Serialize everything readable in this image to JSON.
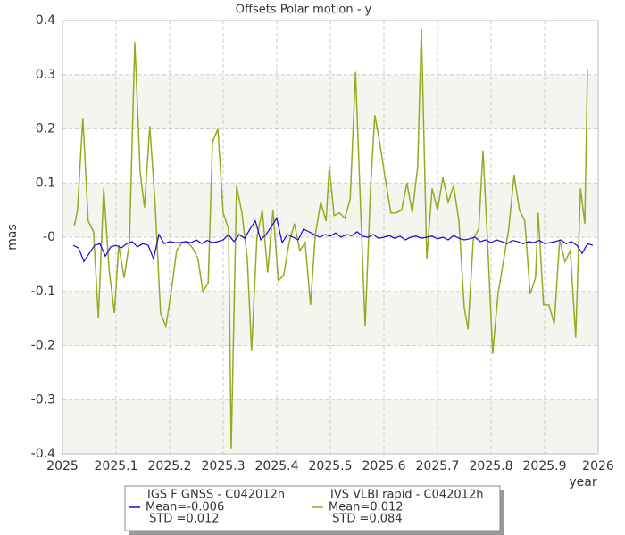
{
  "chart_data": {
    "type": "line",
    "title": "Offsets Polar motion - y",
    "xlabel": "year",
    "ylabel": "mas",
    "xlim": [
      2025,
      2026
    ],
    "xticks": [
      2025,
      2025.1,
      2025.2,
      2025.3,
      2025.4,
      2025.5,
      2025.6,
      2025.7,
      2025.8,
      2025.9,
      2026
    ],
    "ylim": [
      -0.4,
      0.4
    ],
    "yticks": [
      0.4,
      0.3,
      0.2,
      0.1,
      {
        "value": 0,
        "label": "-0"
      },
      -0.1,
      -0.2,
      -0.3,
      -0.4
    ],
    "grid": true,
    "series": [
      {
        "name": "IGS F GNSS - C042012h",
        "color": "#2200dd",
        "mean": "Mean=-0.006",
        "std": " STD =0.012",
        "x": [
          2025.02,
          2025.03,
          2025.04,
          2025.05,
          2025.06,
          2025.07,
          2025.08,
          2025.09,
          2025.1,
          2025.11,
          2025.12,
          2025.13,
          2025.14,
          2025.15,
          2025.16,
          2025.17,
          2025.18,
          2025.19,
          2025.2,
          2025.21,
          2025.22,
          2025.23,
          2025.24,
          2025.25,
          2025.26,
          2025.27,
          2025.28,
          2025.29,
          2025.3,
          2025.31,
          2025.32,
          2025.33,
          2025.34,
          2025.35,
          2025.36,
          2025.37,
          2025.38,
          2025.39,
          2025.4,
          2025.41,
          2025.42,
          2025.43,
          2025.44,
          2025.45,
          2025.46,
          2025.47,
          2025.48,
          2025.49,
          2025.5,
          2025.51,
          2025.52,
          2025.53,
          2025.54,
          2025.55,
          2025.56,
          2025.57,
          2025.58,
          2025.59,
          2025.6,
          2025.61,
          2025.62,
          2025.63,
          2025.64,
          2025.65,
          2025.66,
          2025.67,
          2025.68,
          2025.69,
          2025.7,
          2025.71,
          2025.72,
          2025.73,
          2025.74,
          2025.75,
          2025.76,
          2025.77,
          2025.78,
          2025.79,
          2025.8,
          2025.81,
          2025.82,
          2025.83,
          2025.84,
          2025.85,
          2025.86,
          2025.87,
          2025.88,
          2025.89,
          2025.9,
          2025.91,
          2025.92,
          2025.93,
          2025.94,
          2025.95,
          2025.96,
          2025.97,
          2025.98,
          2025.99
        ],
        "values": [
          -0.015,
          -0.02,
          -0.045,
          -0.03,
          -0.015,
          -0.012,
          -0.035,
          -0.018,
          -0.015,
          -0.02,
          -0.012,
          -0.008,
          -0.018,
          -0.012,
          -0.015,
          -0.04,
          0.005,
          -0.012,
          -0.008,
          -0.01,
          -0.01,
          -0.008,
          -0.01,
          -0.005,
          -0.012,
          -0.006,
          -0.01,
          -0.008,
          -0.005,
          0.005,
          -0.008,
          0.005,
          -0.002,
          0.015,
          0.03,
          -0.005,
          0.005,
          0.02,
          0.035,
          -0.01,
          0.005,
          0.0,
          -0.005,
          0.015,
          0.01,
          0.005,
          0.0,
          0.005,
          0.002,
          0.008,
          0.0,
          0.005,
          0.003,
          0.01,
          0.002,
          0.0,
          0.005,
          -0.002,
          0.0,
          0.003,
          -0.002,
          0.002,
          -0.005,
          0.0,
          0.002,
          -0.002,
          0.0,
          0.002,
          -0.003,
          0.0,
          -0.005,
          0.003,
          -0.002,
          -0.005,
          -0.003,
          0.0,
          -0.008,
          -0.005,
          -0.01,
          -0.005,
          -0.008,
          -0.012,
          -0.006,
          -0.008,
          -0.012,
          -0.008,
          -0.01,
          -0.006,
          -0.012,
          -0.01,
          -0.008,
          -0.005,
          -0.012,
          -0.008,
          -0.015,
          -0.03,
          -0.012,
          -0.015
        ]
      },
      {
        "name": "IVS VLBI rapid - C042012h",
        "color": "#99a822",
        "mean": "Mean=0.012",
        "std": " STD =0.084",
        "x": [
          2025.022,
          2025.028,
          2025.038,
          2025.048,
          2025.058,
          2025.067,
          2025.077,
          2025.087,
          2025.097,
          2025.105,
          2025.115,
          2025.125,
          2025.135,
          2025.145,
          2025.153,
          2025.163,
          2025.173,
          2025.183,
          2025.193,
          2025.203,
          2025.213,
          2025.223,
          2025.233,
          2025.243,
          2025.253,
          2025.262,
          2025.272,
          2025.28,
          2025.29,
          2025.3,
          2025.31,
          2025.315,
          2025.325,
          2025.335,
          2025.345,
          2025.353,
          2025.363,
          2025.373,
          2025.383,
          2025.393,
          2025.403,
          2025.413,
          2025.423,
          2025.433,
          2025.443,
          2025.453,
          2025.463,
          2025.472,
          2025.482,
          2025.492,
          2025.498,
          2025.507,
          2025.517,
          2025.527,
          2025.537,
          2025.547,
          2025.557,
          2025.565,
          2025.575,
          2025.583,
          2025.593,
          2025.603,
          2025.613,
          2025.623,
          2025.633,
          2025.643,
          2025.653,
          2025.663,
          2025.67,
          2025.68,
          2025.69,
          2025.7,
          2025.71,
          2025.72,
          2025.73,
          2025.74,
          2025.75,
          2025.757,
          2025.767,
          2025.777,
          2025.785,
          2025.795,
          2025.803,
          2025.813,
          2025.823,
          2025.833,
          2025.843,
          2025.853,
          2025.863,
          2025.873,
          2025.883,
          2025.888,
          2025.898,
          2025.908,
          2025.918,
          2025.928,
          2025.938,
          2025.948,
          2025.958,
          2025.967,
          2025.975,
          2025.98
        ],
        "values": [
          0.02,
          0.05,
          0.22,
          0.03,
          0.01,
          -0.15,
          0.09,
          -0.06,
          -0.14,
          -0.015,
          -0.075,
          -0.01,
          0.36,
          0.12,
          0.055,
          0.205,
          0.06,
          -0.14,
          -0.165,
          -0.1,
          -0.025,
          -0.01,
          -0.01,
          -0.02,
          -0.04,
          -0.1,
          -0.085,
          0.175,
          0.2,
          0.045,
          0.015,
          -0.39,
          0.095,
          0.045,
          -0.04,
          -0.21,
          0.0,
          0.05,
          -0.065,
          0.05,
          -0.08,
          -0.07,
          -0.01,
          0.025,
          -0.025,
          -0.01,
          -0.125,
          0.005,
          0.065,
          0.03,
          0.13,
          0.04,
          0.045,
          0.035,
          0.07,
          0.305,
          0.04,
          -0.165,
          0.09,
          0.225,
          0.17,
          0.105,
          0.045,
          0.045,
          0.05,
          0.1,
          0.045,
          0.13,
          0.385,
          -0.04,
          0.09,
          0.05,
          0.11,
          0.065,
          0.095,
          0.03,
          -0.13,
          -0.17,
          -0.002,
          0.015,
          0.16,
          -0.04,
          -0.215,
          -0.105,
          -0.045,
          0.015,
          0.115,
          0.05,
          0.03,
          -0.105,
          -0.075,
          0.045,
          -0.125,
          -0.125,
          -0.16,
          -0.005,
          -0.045,
          -0.025,
          -0.185,
          0.09,
          0.025,
          0.31
        ]
      }
    ]
  }
}
